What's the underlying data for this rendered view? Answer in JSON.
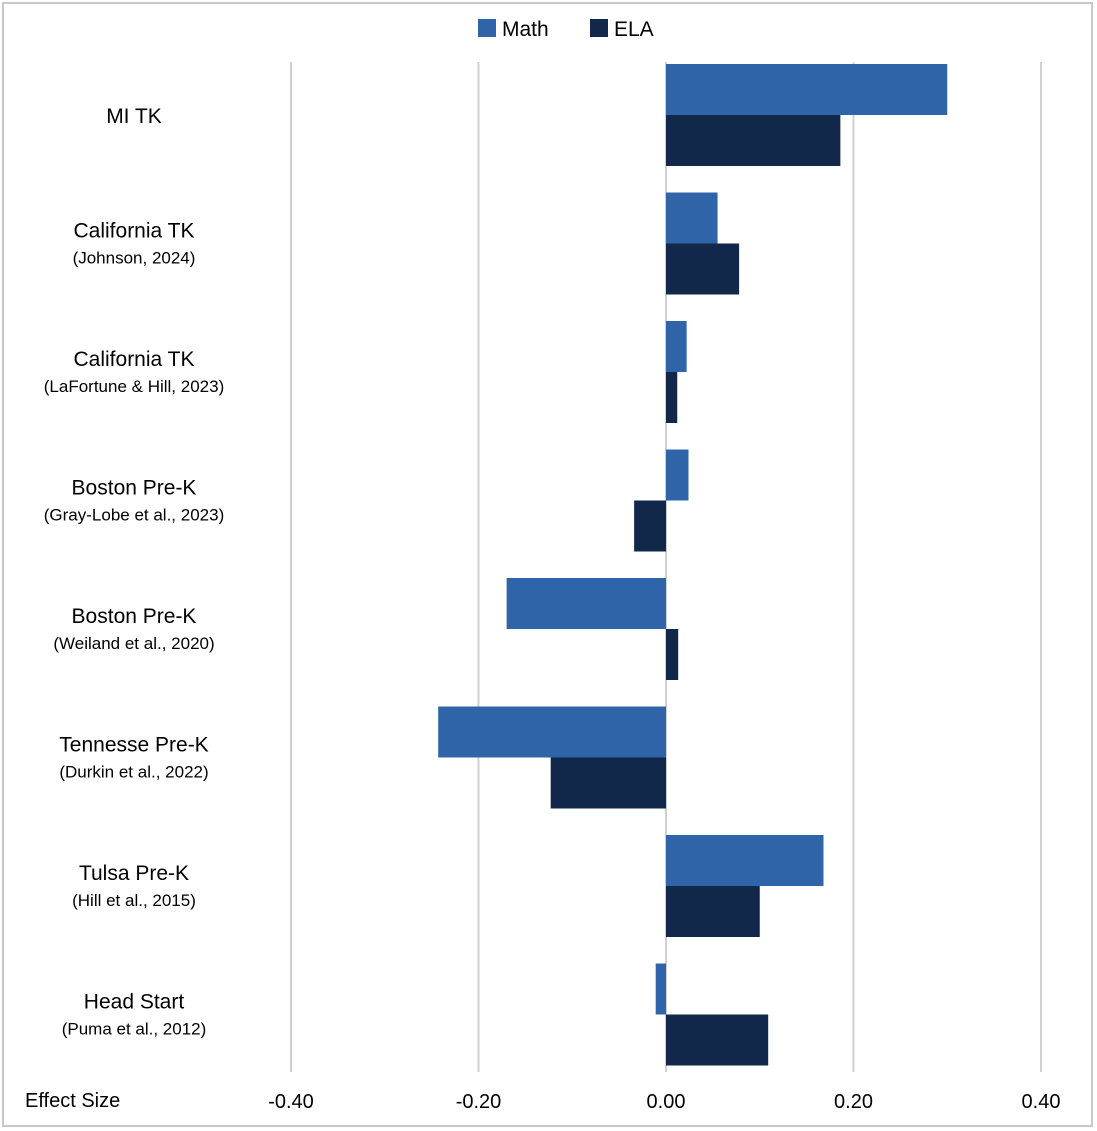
{
  "chart_data": {
    "type": "bar",
    "orientation": "horizontal",
    "categories": [
      {
        "label": "MI TK",
        "sublabel": ""
      },
      {
        "label": "California TK",
        "sublabel": "(Johnson, 2024)"
      },
      {
        "label": "California TK",
        "sublabel": "(LaFortune & Hill, 2023)"
      },
      {
        "label": "Boston Pre-K",
        "sublabel": "(Gray-Lobe et al., 2023)"
      },
      {
        "label": "Boston Pre-K",
        "sublabel": "(Weiland et al., 2020)"
      },
      {
        "label": "Tennesse Pre-K",
        "sublabel": "(Durkin et al., 2022)"
      },
      {
        "label": "Tulsa Pre-K",
        "sublabel": "(Hill et al., 2015)"
      },
      {
        "label": "Head Start",
        "sublabel": "(Puma et al., 2012)"
      }
    ],
    "series": [
      {
        "name": "Math",
        "color": "#2f64a8",
        "values": [
          0.3,
          0.055,
          0.022,
          0.024,
          -0.17,
          -0.243,
          0.168,
          -0.011
        ]
      },
      {
        "name": "ELA",
        "color": "#12284a",
        "values": [
          0.186,
          0.078,
          0.012,
          -0.034,
          0.013,
          -0.123,
          0.1,
          0.109
        ]
      }
    ],
    "xlabel": "Effect Size",
    "xlim": [
      -0.4,
      0.4
    ],
    "xticks": [
      -0.4,
      -0.2,
      0.0,
      0.2,
      0.4
    ],
    "xtick_labels": [
      "-0.40",
      "-0.20",
      "0.00",
      "0.20",
      "0.40"
    ],
    "grid": "vertical",
    "legend_position": "top-center"
  },
  "colors": {
    "gridline": "#d0d0d0",
    "frame": "#c8c8c8"
  }
}
